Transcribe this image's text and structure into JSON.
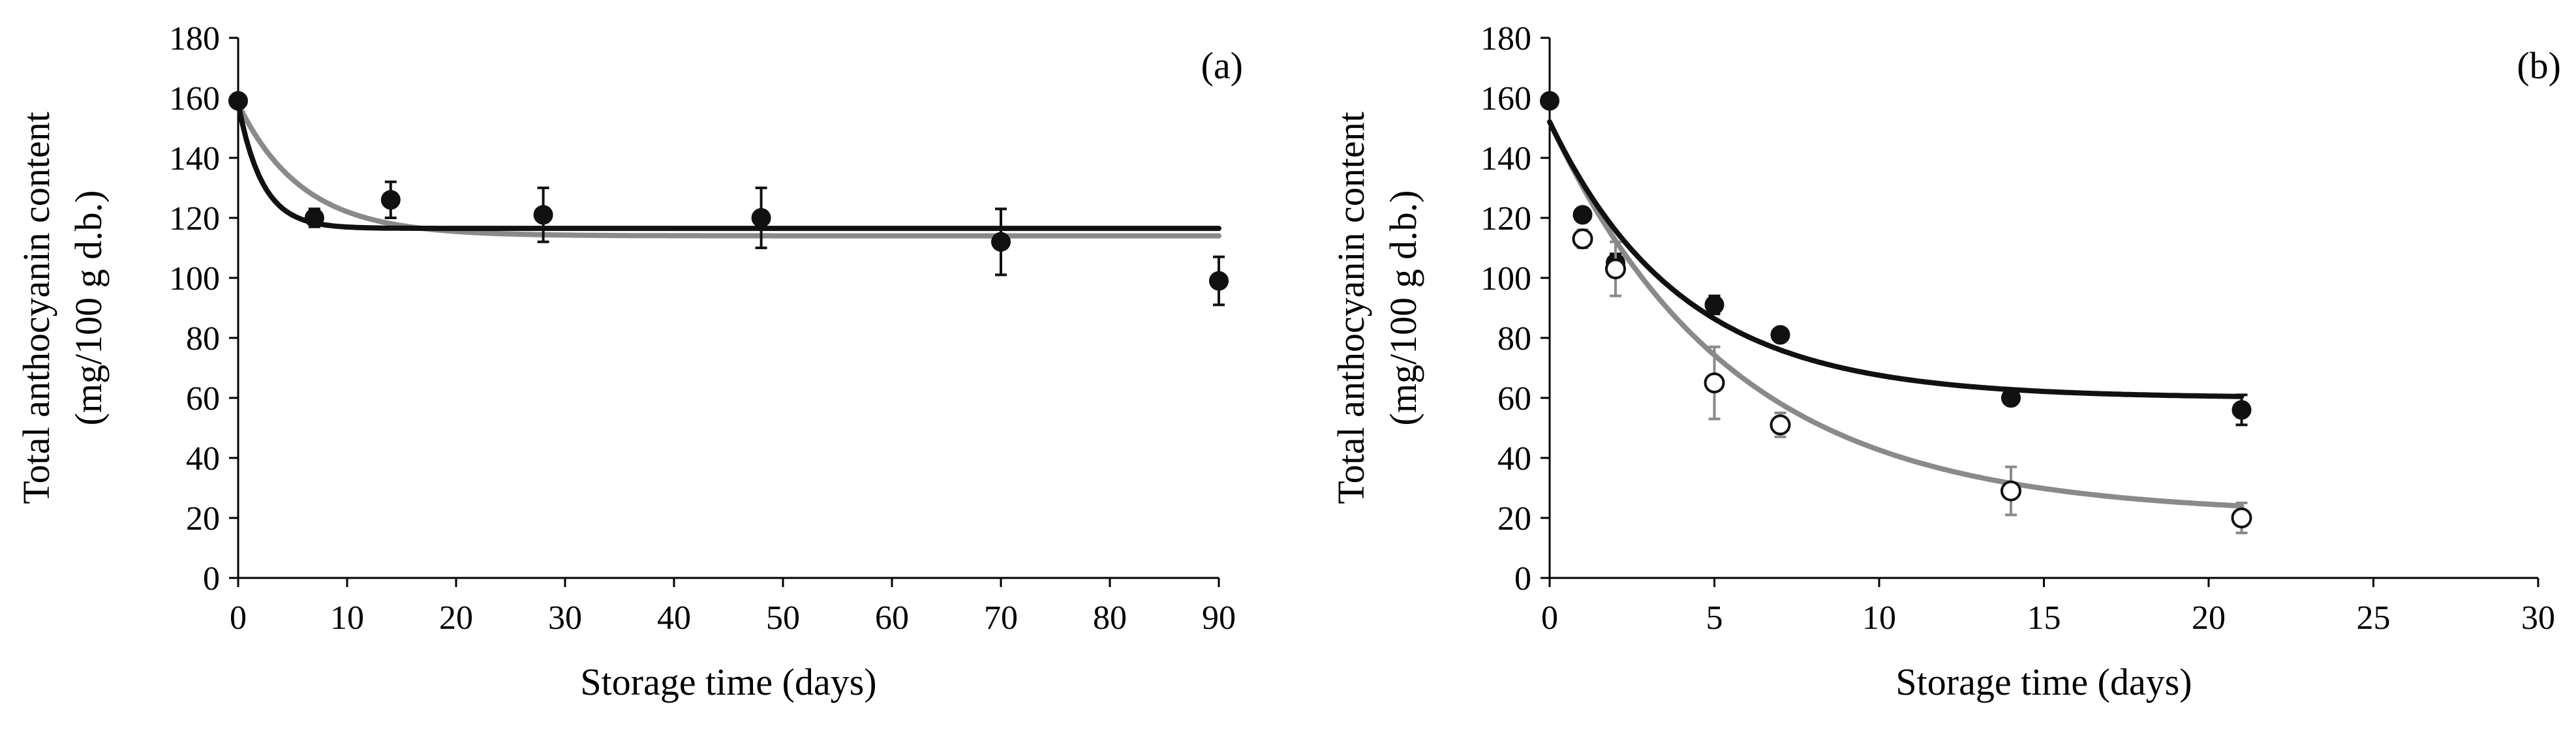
{
  "colors": {
    "black_series": "#111111",
    "gray_series": "#8a8a8a",
    "axis": "#000000"
  },
  "chart_data": [
    {
      "type": "scatter",
      "panel_label": "(a)",
      "xlabel": "Storage time (days)",
      "ylabel_line1": "Total anthocyanin content",
      "ylabel_line2": "(mg/100 g d.b.)",
      "xlim": [
        0,
        90
      ],
      "ylim": [
        0,
        180
      ],
      "xticks": [
        0,
        10,
        20,
        30,
        40,
        50,
        60,
        70,
        80,
        90
      ],
      "yticks": [
        0,
        20,
        40,
        60,
        80,
        100,
        120,
        140,
        160,
        180
      ],
      "grid": false,
      "points": [
        {
          "marker": "filled",
          "color": "black_series",
          "data": [
            {
              "x": 0,
              "y": 159,
              "err": 2
            },
            {
              "x": 7,
              "y": 120,
              "err": 3
            },
            {
              "x": 14,
              "y": 126,
              "err": 6
            },
            {
              "x": 28,
              "y": 121,
              "err": 9
            },
            {
              "x": 48,
              "y": 120,
              "err": 10
            },
            {
              "x": 70,
              "y": 112,
              "err": 11
            },
            {
              "x": 90,
              "y": 99,
              "err": 8
            }
          ]
        }
      ],
      "fits": [
        {
          "color": "black_series",
          "model": "first-order",
          "c0": 158,
          "ceq": 116.5,
          "k": 0.45,
          "xmax": 90
        },
        {
          "color": "gray_series",
          "model": "first-order",
          "c0": 158,
          "ceq": 114,
          "k": 0.17,
          "xmax": 90
        }
      ]
    },
    {
      "type": "scatter",
      "panel_label": "(b)",
      "xlabel": "Storage time (days)",
      "ylabel_line1": "Total anthocyanin content",
      "ylabel_line2": "(mg/100 g d.b.)",
      "xlim": [
        0,
        30
      ],
      "ylim": [
        0,
        180
      ],
      "xticks": [
        0,
        5,
        10,
        15,
        20,
        25,
        30
      ],
      "yticks": [
        0,
        20,
        40,
        60,
        80,
        100,
        120,
        140,
        160,
        180
      ],
      "grid": false,
      "points": [
        {
          "marker": "filled",
          "color": "black_series",
          "data": [
            {
              "x": 0,
              "y": 159,
              "err": 2
            },
            {
              "x": 1,
              "y": 121,
              "err": 2
            },
            {
              "x": 2,
              "y": 105,
              "err": 3
            },
            {
              "x": 5,
              "y": 91,
              "err": 3
            },
            {
              "x": 7,
              "y": 81,
              "err": 2
            },
            {
              "x": 14,
              "y": 60,
              "err": 2
            },
            {
              "x": 21,
              "y": 56,
              "err": 5
            }
          ]
        },
        {
          "marker": "open",
          "color": "black_series",
          "err_color": "gray_series",
          "data": [
            {
              "x": 1,
              "y": 113,
              "err": 3
            },
            {
              "x": 2,
              "y": 103,
              "err": 9
            },
            {
              "x": 5,
              "y": 65,
              "err": 12
            },
            {
              "x": 7,
              "y": 51,
              "err": 4
            },
            {
              "x": 14,
              "y": 29,
              "err": 8
            },
            {
              "x": 21,
              "y": 20,
              "err": 5
            }
          ]
        }
      ],
      "fits": [
        {
          "color": "black_series",
          "model": "first-order",
          "c0": 152,
          "ceq": 60,
          "k": 0.25,
          "xmax": 21
        },
        {
          "color": "gray_series",
          "model": "first-order",
          "c0": 152,
          "ceq": 21,
          "k": 0.18,
          "xmax": 21
        }
      ]
    }
  ]
}
